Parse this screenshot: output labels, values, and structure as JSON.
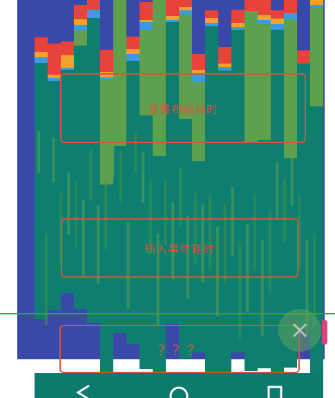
{
  "annotations": {
    "draw_label": "测量布局耗时",
    "input_label": "输入事件耗时",
    "unknown_label": "？？？"
  },
  "navigation": {
    "back": "back-triangle-icon",
    "home": "home-circle-icon",
    "recents": "recents-square-icon"
  },
  "colors": {
    "blue": "#3a48a8",
    "red": "#e8433a",
    "orange": "#f2a12a",
    "light_blue": "#3b9ae0",
    "green": "#5fa04e",
    "mid_green": "#3f9448",
    "teal": "#0d7e70",
    "annotation": "#d9533a",
    "nav_bar": "#0c7a6c"
  },
  "chart_data": {
    "type": "bar",
    "segments": [
      "blue",
      "red",
      "orange",
      "light_blue",
      "green",
      "mid_green",
      "teal"
    ],
    "bars": [
      [
        54,
        21,
        8,
        8,
        0,
        0,
        371
      ],
      [
        63,
        45,
        5,
        4,
        0,
        0,
        332
      ],
      [
        60,
        20,
        18,
        3,
        0,
        0,
        323
      ],
      [
        7,
        21,
        8,
        8,
        22,
        0,
        381
      ],
      [
        0,
        14,
        0,
        12,
        0,
        0,
        441
      ],
      [
        72,
        32,
        8,
        3,
        152,
        0,
        271
      ],
      [
        0,
        0,
        0,
        0,
        211,
        0,
        271
      ],
      [
        53,
        18,
        7,
        10,
        0,
        0,
        410
      ],
      [
        3,
        26,
        3,
        11,
        124,
        0,
        367
      ],
      [
        0,
        0,
        0,
        0,
        226,
        0,
        317
      ],
      [
        0,
        23,
        6,
        3,
        0,
        0,
        437
      ],
      [
        0,
        10,
        5,
        6,
        151,
        0,
        347
      ],
      [
        78,
        23,
        7,
        11,
        114,
        0,
        277
      ],
      [
        15,
        11,
        7,
        5,
        0,
        0,
        512
      ],
      [
        68,
        24,
        5,
        5,
        0,
        0,
        456
      ],
      [
        14,
        19,
        6,
        4,
        0,
        0,
        467
      ],
      [
        0,
        16,
        0,
        0,
        191,
        0,
        330
      ],
      [
        0,
        22,
        7,
        6,
        168,
        0,
        330
      ],
      [
        15,
        12,
        8,
        8,
        0,
        0,
        527
      ],
      [
        0,
        19,
        0,
        10,
        200,
        0,
        303
      ],
      [
        73,
        19,
        0,
        0,
        0,
        0,
        385
      ],
      [
        0,
        0,
        7,
        3,
        144,
        0,
        399
      ]
    ]
  }
}
